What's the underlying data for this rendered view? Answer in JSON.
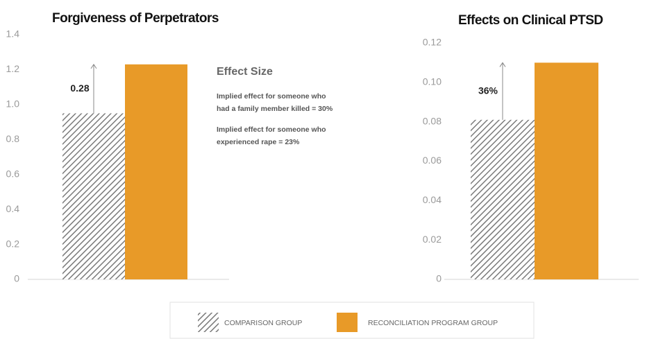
{
  "chart_data": [
    {
      "type": "bar",
      "title": "Forgiveness of Perpetrators",
      "values": [
        0.95,
        1.23
      ],
      "ylim": [
        0,
        1.4
      ],
      "yticks": [
        0,
        0.2,
        0.4,
        0.6,
        0.8,
        {
          "value": 1,
          "label": "1.0"
        },
        1.2,
        1.4
      ],
      "annotation": "0.28",
      "note_title": "Effect Size",
      "note_lines": [
        "Implied effect for someone who",
        "had a family member killed = 30%",
        "Implied effect for someone who",
        "experienced rape = 23%"
      ]
    },
    {
      "type": "bar",
      "title": "Effects on Clinical PTSD",
      "values": [
        0.081,
        0.11
      ],
      "ylim": [
        0,
        0.12
      ],
      "yticks": [
        0,
        0.02,
        0.04,
        0.06,
        0.08,
        {
          "value": 0.1,
          "label": "0.10"
        },
        0.12
      ],
      "annotation": "36%"
    }
  ],
  "legend": [
    {
      "name": "COMPARISON GROUP",
      "color": "#7a7a7a",
      "pattern": "hatch"
    },
    {
      "name": "RECONCILIATION PROGRAM GROUP",
      "color": "#e89a28"
    }
  ]
}
